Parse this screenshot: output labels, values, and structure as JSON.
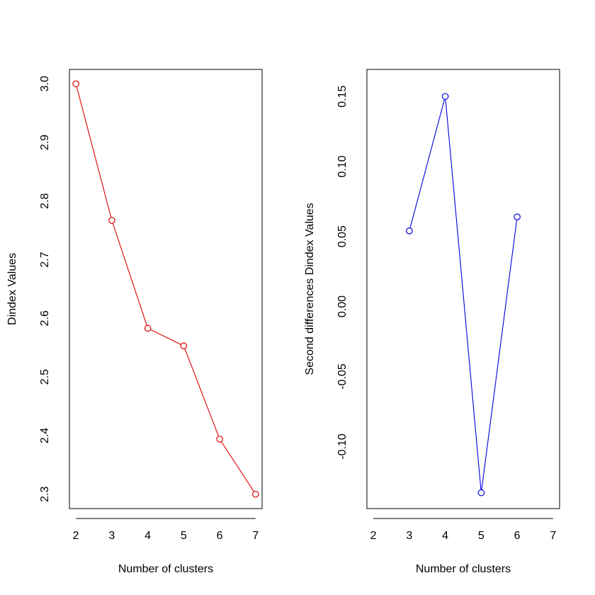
{
  "chart_data": [
    {
      "type": "line",
      "title": "",
      "xlabel": "Number of clusters",
      "ylabel": "Dindex Values",
      "x": [
        2,
        3,
        4,
        5,
        6,
        7
      ],
      "xticks": [
        "2",
        "3",
        "4",
        "5",
        "6",
        "7"
      ],
      "xlim": [
        1.82,
        7.18
      ],
      "ylim": [
        2.2755,
        3.0245
      ],
      "yticks": [
        "2.3",
        "2.4",
        "2.5",
        "2.6",
        "2.7",
        "2.8",
        "2.9",
        "3.0"
      ],
      "series": [
        {
          "name": "Dindex",
          "color": "#dd0000",
          "marker": "open-circle",
          "values": [
            3.0,
            2.767,
            2.583,
            2.553,
            2.394,
            2.3
          ]
        }
      ]
    },
    {
      "type": "line",
      "title": "",
      "xlabel": "Number of clusters",
      "ylabel": "Second differences Dindex Values",
      "x": [
        3,
        4,
        5,
        6
      ],
      "xticks": [
        "2",
        "3",
        "4",
        "5",
        "6",
        "7"
      ],
      "xlim": [
        1.82,
        7.18
      ],
      "ylim": [
        -0.1443,
        0.1693
      ],
      "yticks": [
        "-0.10",
        "-0.05",
        "0.00",
        "0.05",
        "0.10",
        "0.15"
      ],
      "series": [
        {
          "name": "Second differences",
          "color": "#0000dd",
          "marker": "open-circle",
          "values": [
            0.054,
            0.15,
            -0.133,
            0.064
          ]
        }
      ]
    }
  ]
}
